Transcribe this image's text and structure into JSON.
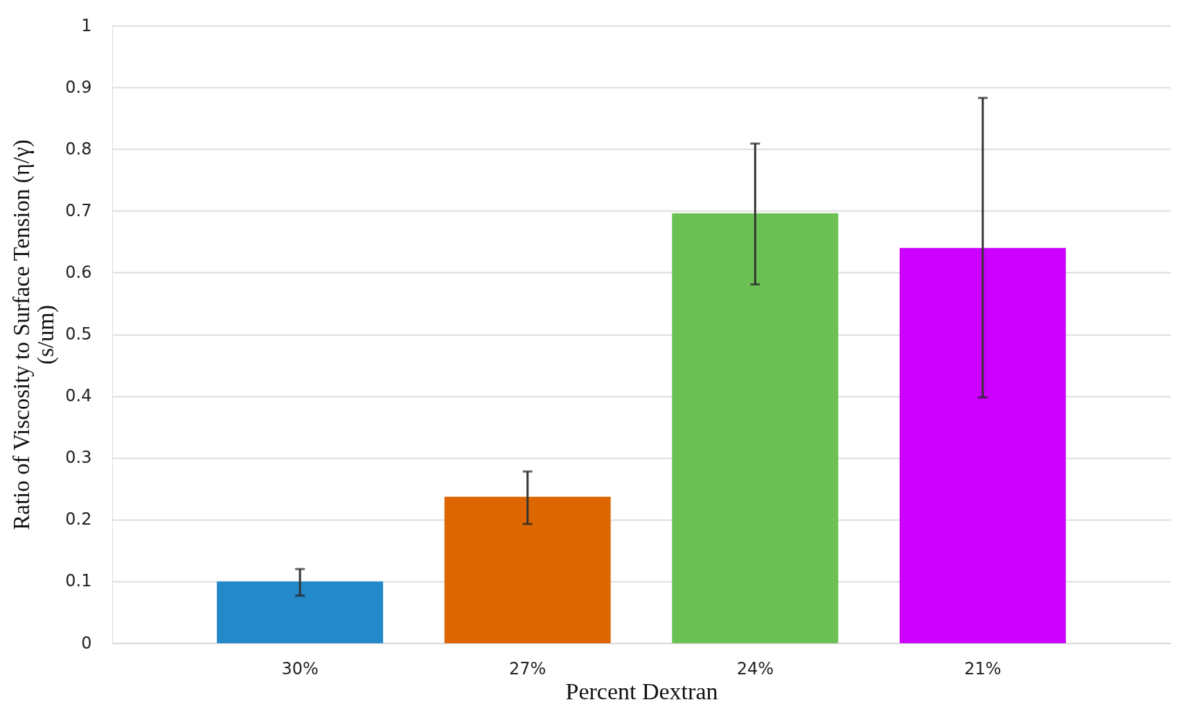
{
  "chart_data": {
    "type": "bar",
    "xlabel": "Percent Dextran",
    "ylabel": "Ratio of Viscosity to Surface Tension (η/γ)\n(s/um)",
    "categories": [
      "30%",
      "27%",
      "24%",
      "21%"
    ],
    "values": [
      0.1,
      0.237,
      0.696,
      0.64
    ],
    "colors": [
      "#2389c9",
      "#dd6600",
      "#6cc155",
      "#cc00ff"
    ],
    "errors": [
      [
        0.077,
        0.12
      ],
      [
        0.193,
        0.278
      ],
      [
        0.581,
        0.809
      ],
      [
        0.398,
        0.883
      ]
    ],
    "ylim": [
      0,
      1
    ],
    "yticks": [
      0,
      0.1,
      0.2,
      0.3,
      0.4,
      0.5,
      0.6,
      0.7,
      0.8,
      0.9,
      1
    ],
    "grid": "y"
  }
}
